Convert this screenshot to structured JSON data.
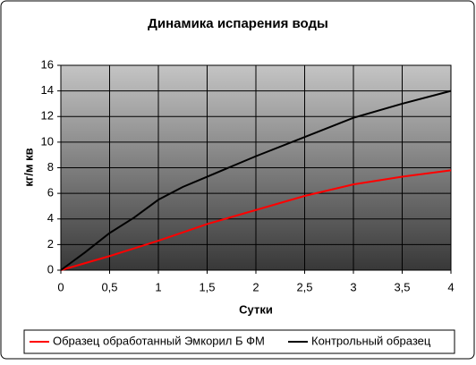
{
  "chart_data": {
    "type": "line",
    "title": "Динамика испарения воды",
    "x_label": "Сутки",
    "y_label": "кг/м кв",
    "x": [
      0,
      0.25,
      0.5,
      0.75,
      1,
      1.25,
      1.5,
      2,
      2.5,
      3,
      3.5,
      4
    ],
    "series": [
      {
        "name": "Образец обработанный Эмкорил Б ФМ",
        "color": "#ff0000",
        "values": [
          0,
          0.55,
          1.1,
          1.7,
          2.3,
          2.95,
          3.6,
          4.7,
          5.8,
          6.7,
          7.3,
          7.8
        ]
      },
      {
        "name": "Контрольный образец",
        "color": "#000000",
        "values": [
          0,
          1.4,
          2.9,
          4.1,
          5.5,
          6.5,
          7.3,
          8.9,
          10.4,
          11.9,
          13.0,
          14.0
        ]
      }
    ],
    "xlim": [
      0,
      4
    ],
    "ylim": [
      0,
      16
    ],
    "xticks": [
      0,
      {
        "value": 0.5,
        "label": "0,5"
      },
      1,
      {
        "value": 1.5,
        "label": "1,5"
      },
      2,
      {
        "value": 2.5,
        "label": "2,5"
      },
      3,
      {
        "value": 3.5,
        "label": "3,5"
      },
      4
    ],
    "yticks": [
      0,
      2,
      4,
      6,
      8,
      10,
      12,
      14,
      16
    ],
    "grid": true,
    "legend": "bottom"
  }
}
